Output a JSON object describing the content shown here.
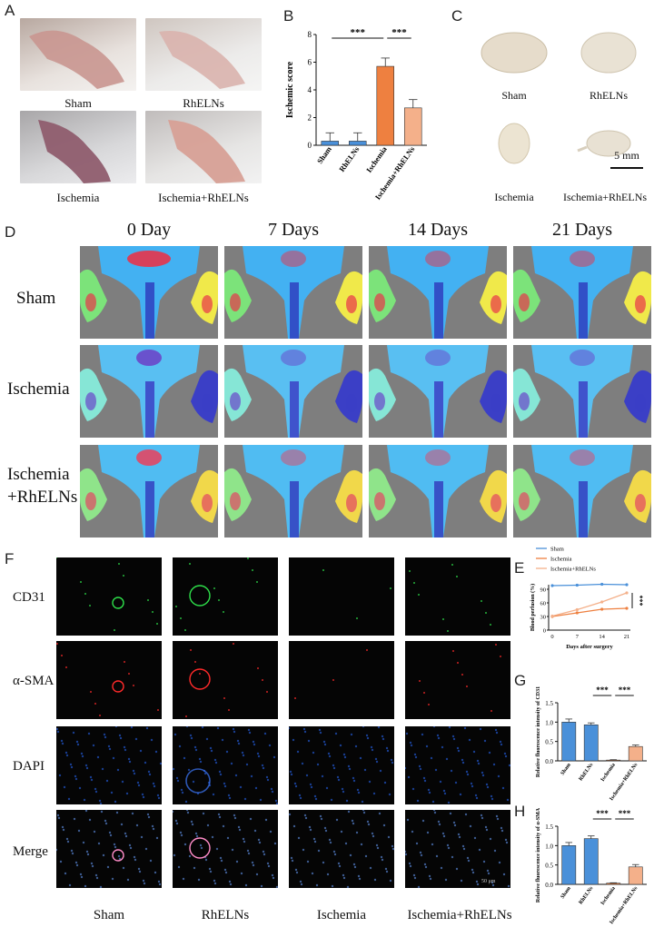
{
  "panels": {
    "A": {
      "label": "A",
      "captions": [
        "Sham",
        "RhELNs",
        "Ischemia",
        "Ischemia+RhELNs"
      ]
    },
    "B": {
      "label": "B",
      "chart_data": {
        "type": "bar",
        "ylabel": "Ischemic score",
        "categories": [
          "Sham",
          "RhELNs",
          "Ischemia",
          "Ischemia+RhELNs"
        ],
        "values": [
          0.3,
          0.3,
          5.7,
          2.7
        ],
        "errors": [
          0.6,
          0.6,
          0.6,
          0.6
        ],
        "ylim": [
          0,
          8
        ],
        "yticks": [
          "0",
          "2",
          "4",
          "6",
          "8"
        ],
        "colors": [
          "#4a90d9",
          "#4a90d9",
          "#ee8040",
          "#f4b08a"
        ],
        "significance": [
          {
            "from": 0,
            "to": 2,
            "label": "***"
          },
          {
            "from": 2,
            "to": 3,
            "label": "***"
          }
        ]
      }
    },
    "C": {
      "label": "C",
      "captions": [
        "Sham",
        "RhELNs",
        "Ischemia",
        "Ischemia+RhELNs"
      ],
      "scale_bar": "5 mm"
    },
    "D": {
      "label": "D",
      "columns": [
        "0 Day",
        "7 Days",
        "14 Days",
        "21 Days"
      ],
      "rows": [
        "Sham",
        "Ischemia",
        "Ischemia",
        "+RhELNs"
      ]
    },
    "E": {
      "label": "E",
      "chart_data": {
        "type": "line",
        "xlabel": "Days after surgery",
        "ylabel": "Blood perfusion (%)",
        "x": [
          0,
          7,
          14,
          21
        ],
        "xticks": [
          "0",
          "7",
          "14",
          "21"
        ],
        "yticks": [
          "0",
          "30",
          "60",
          "90"
        ],
        "ylim": [
          0,
          100
        ],
        "series": [
          {
            "name": "Sham",
            "values": [
              98,
              99,
              101,
              100
            ],
            "color": "#4a90d9"
          },
          {
            "name": "Ischemia",
            "values": [
              30,
              38,
              46,
              48
            ],
            "color": "#ee8040"
          },
          {
            "name": "Ischemia+RhELNs",
            "values": [
              31,
              45,
              62,
              82
            ],
            "color": "#f4b08a"
          }
        ],
        "annotation": "***",
        "legend": "top-left"
      }
    },
    "F": {
      "label": "F",
      "rows": [
        "CD31",
        "α-SMA",
        "DAPI",
        "Merge"
      ],
      "columns": [
        "Sham",
        "RhELNs",
        "Ischemia",
        "Ischemia+RhELNs"
      ],
      "scale_bar": "50 μm"
    },
    "G": {
      "label": "G",
      "chart_data": {
        "type": "bar",
        "ylabel": "Relative fluorescence intensity of CD31",
        "categories": [
          "Sham",
          "RhELNs",
          "Ischemia",
          "Ischemia+RhELNs"
        ],
        "values": [
          1.0,
          0.93,
          0.02,
          0.37
        ],
        "errors": [
          0.08,
          0.05,
          0.01,
          0.04
        ],
        "ylim": [
          0,
          1.5
        ],
        "yticks": [
          "0.0",
          "0.5",
          "1.0",
          "1.5"
        ],
        "colors": [
          "#4a90d9",
          "#4a90d9",
          "#ee8040",
          "#f4b08a"
        ],
        "significance": [
          {
            "from": 1,
            "to": 2,
            "label": "***"
          },
          {
            "from": 2,
            "to": 3,
            "label": "***"
          }
        ]
      }
    },
    "H": {
      "label": "H",
      "chart_data": {
        "type": "bar",
        "ylabel": "Relative fluorescence intensity of α-SMA",
        "categories": [
          "Sham",
          "RhELNs",
          "Ischemia",
          "Ischemia+RhELNs"
        ],
        "values": [
          1.0,
          1.18,
          0.03,
          0.45
        ],
        "errors": [
          0.08,
          0.07,
          0.01,
          0.06
        ],
        "ylim": [
          0,
          1.5
        ],
        "yticks": [
          "0.0",
          "0.5",
          "1.0",
          "1.5"
        ],
        "colors": [
          "#4a90d9",
          "#4a90d9",
          "#ee8040",
          "#f4b08a"
        ],
        "significance": [
          {
            "from": 1,
            "to": 2,
            "label": "***"
          },
          {
            "from": 2,
            "to": 3,
            "label": "***"
          }
        ]
      }
    }
  }
}
